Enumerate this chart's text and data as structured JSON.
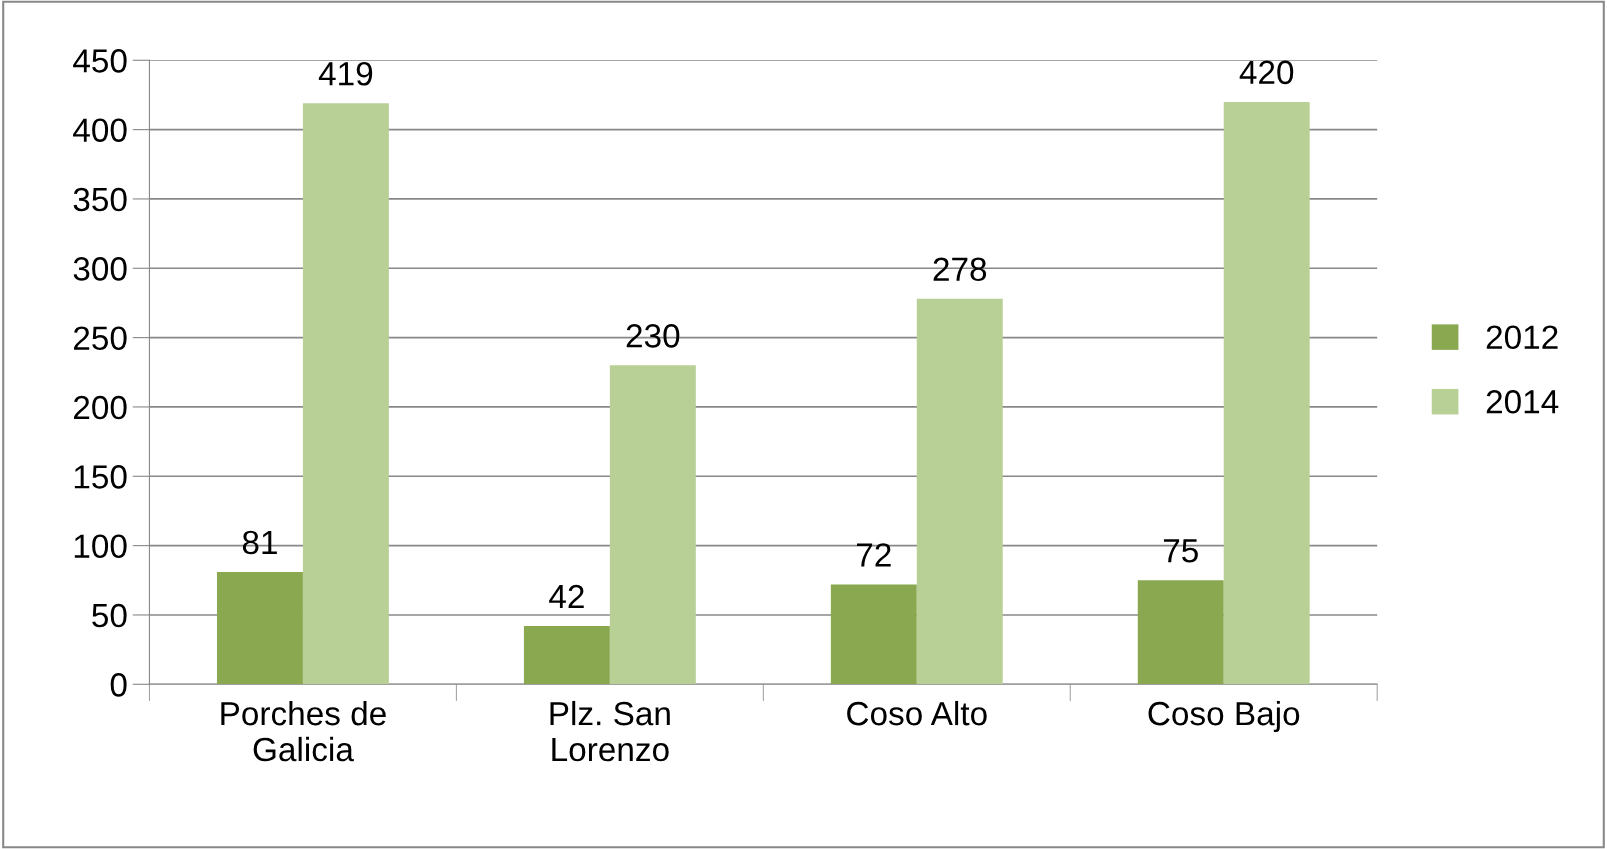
{
  "chart_data": {
    "type": "bar",
    "categories": [
      "Porches de Galicia",
      "Plz. San Lorenzo",
      "Coso Alto",
      "Coso Bajo"
    ],
    "series": [
      {
        "name": "2012",
        "color": "#8aa84f",
        "values": [
          81,
          42,
          72,
          75
        ]
      },
      {
        "name": "2014",
        "color": "#b8cf96",
        "values": [
          419,
          230,
          278,
          420
        ]
      }
    ],
    "ylim": [
      0,
      450
    ],
    "yticks": [
      0,
      50,
      100,
      150,
      200,
      250,
      300,
      350,
      400,
      450
    ],
    "grid": "y",
    "legend": "right",
    "data_labels": true
  }
}
